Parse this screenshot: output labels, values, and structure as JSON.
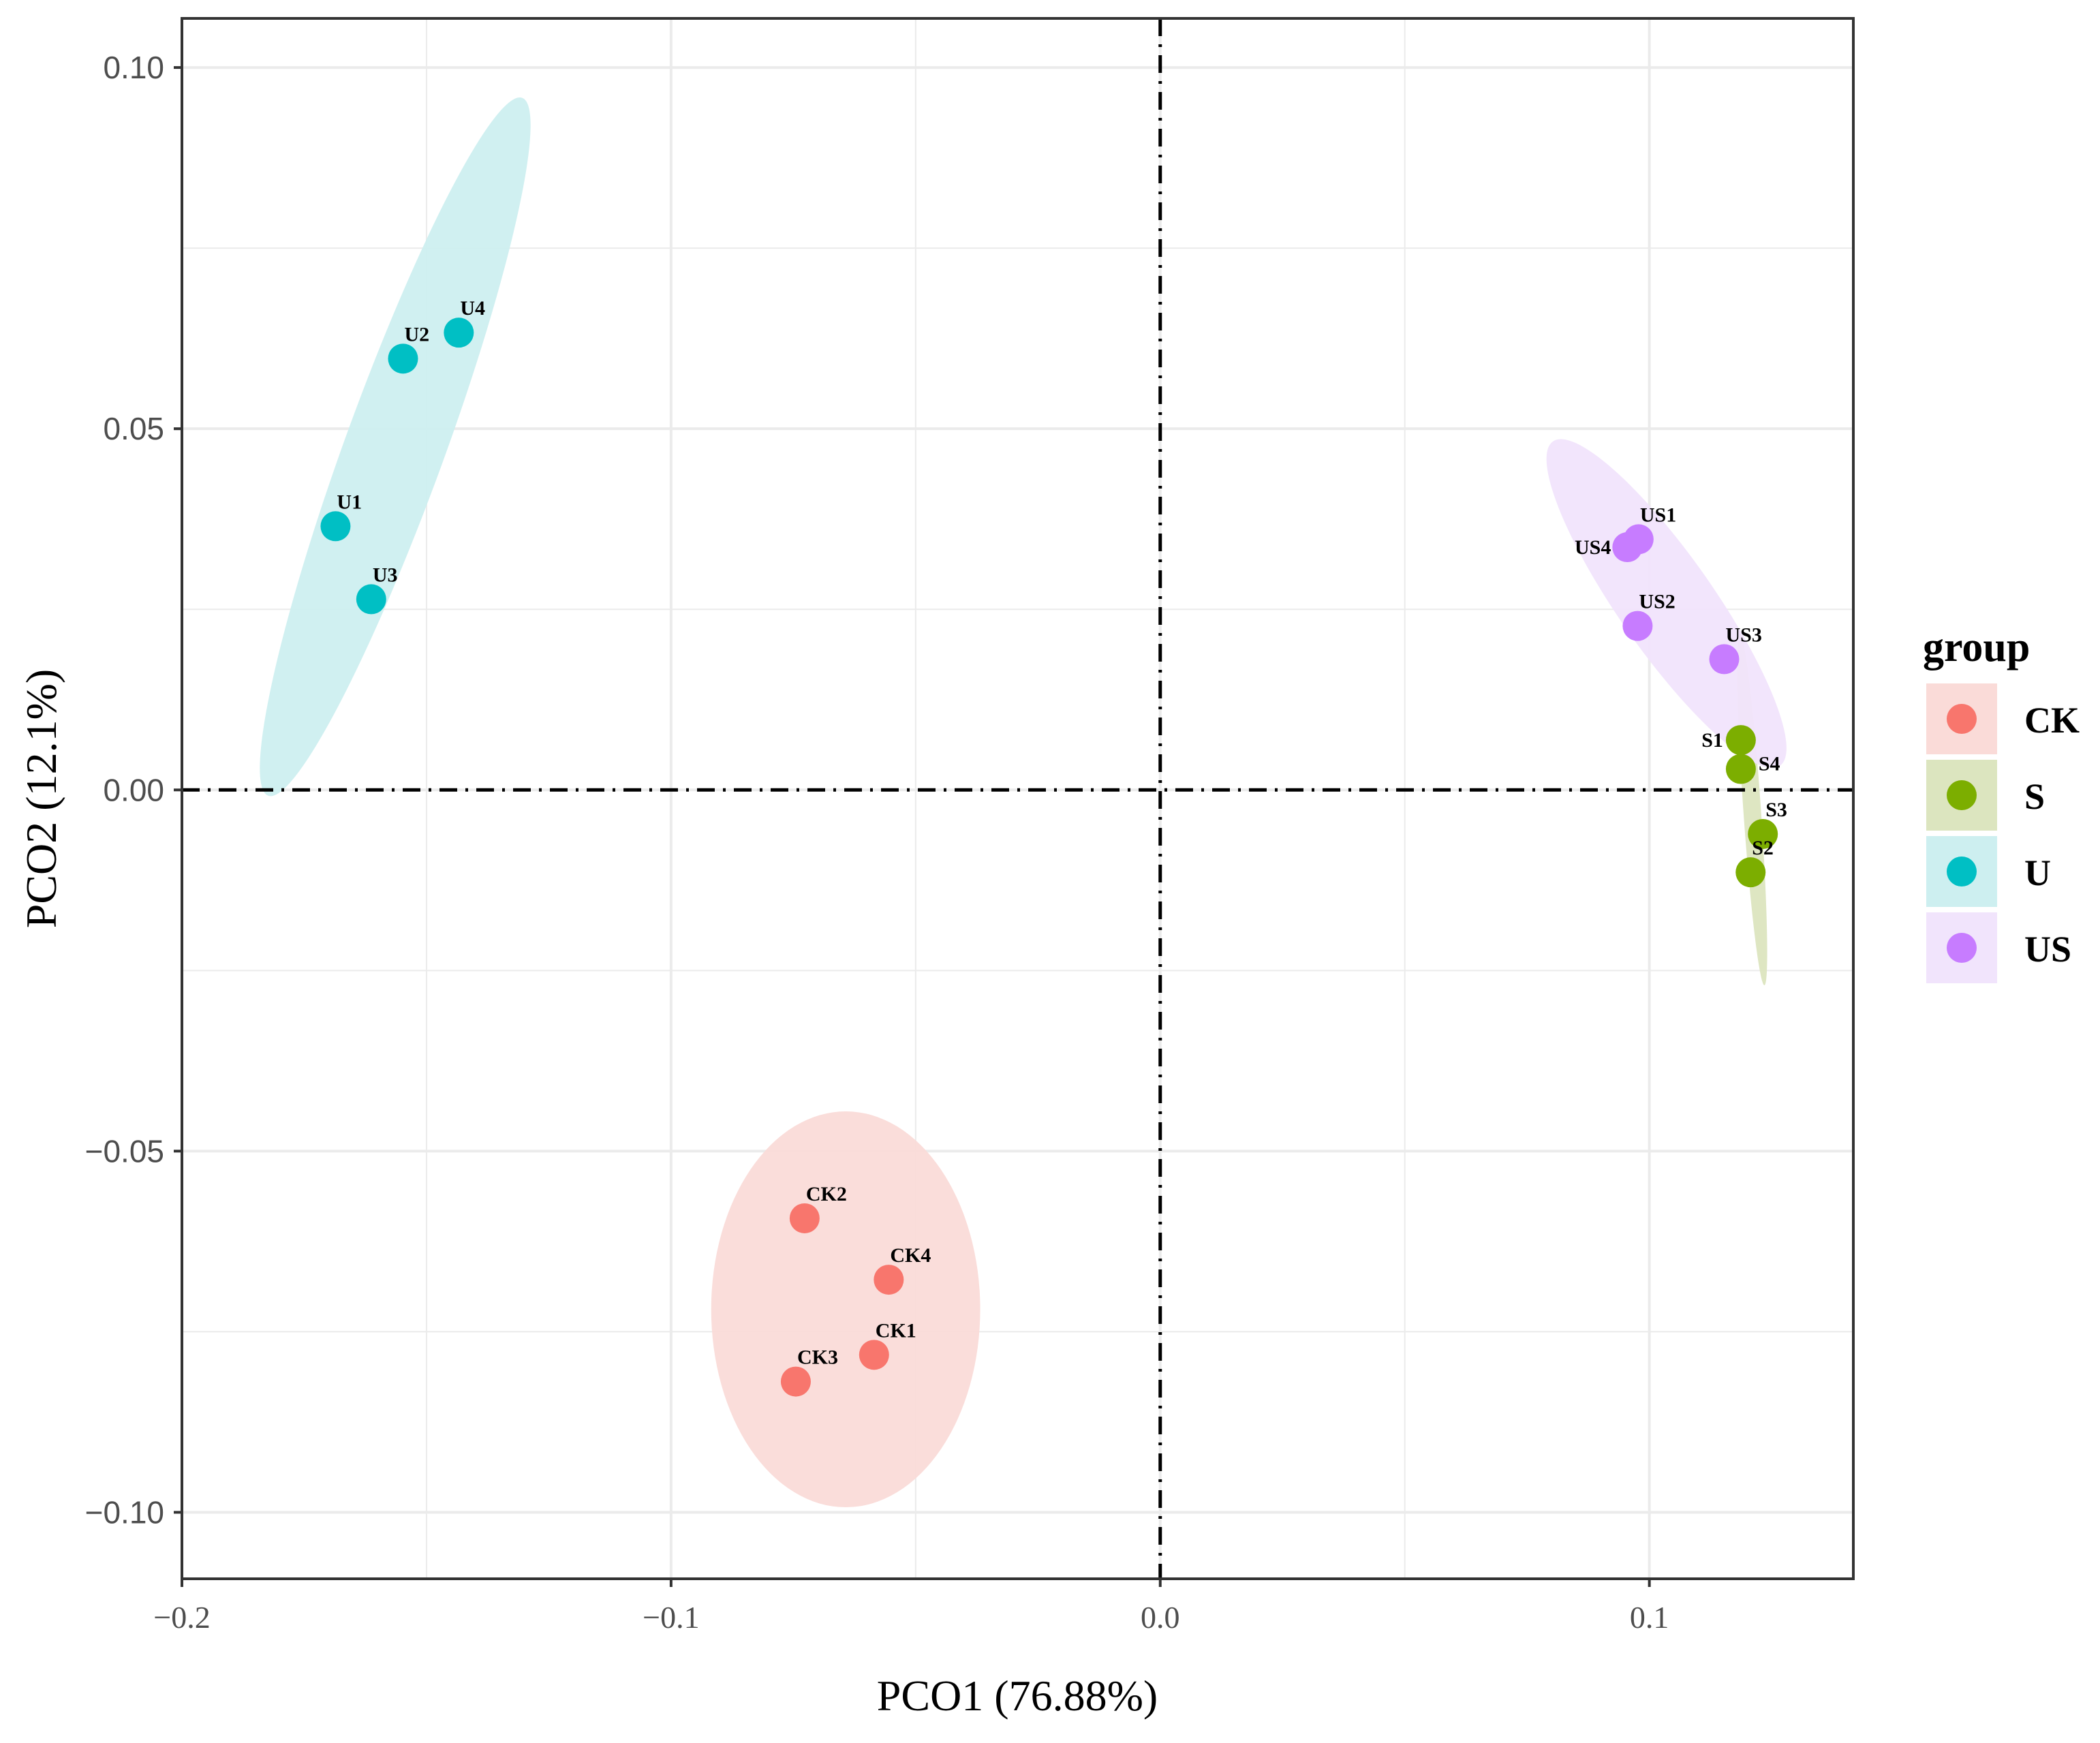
{
  "chart_data": {
    "type": "scatter",
    "title": "",
    "xlabel": "PCO1 (76.88%)",
    "ylabel": "PCO2 (12.1%)",
    "xlim": [
      -0.2,
      0.1417
    ],
    "ylim": [
      -0.1092,
      0.1068
    ],
    "xticks": [
      -0.2,
      -0.1,
      0.0,
      0.1
    ],
    "xtick_labels": [
      "−0.2",
      "−0.1",
      "0.0",
      "0.1"
    ],
    "yticks": [
      -0.1,
      -0.05,
      0.0,
      0.05,
      0.1
    ],
    "ytick_labels": [
      "−0.10",
      "−0.05",
      "0.00",
      "0.05",
      "0.10"
    ],
    "grid": true,
    "reference_lines": {
      "x": 0.0,
      "y": 0.0,
      "style": "dash-dot"
    },
    "legend": {
      "title": "group",
      "position": "right"
    },
    "series": [
      {
        "name": "CK",
        "color": "#F8766D",
        "fill": "#FADBD8",
        "ellipse": {
          "cx": -0.0643,
          "cy": -0.0719,
          "rx": 0.0275,
          "ry": 0.0274,
          "angle": 0
        },
        "points": [
          {
            "label": "CK1",
            "x": -0.0585,
            "y": -0.0782
          },
          {
            "label": "CK2",
            "x": -0.0727,
            "y": -0.0593
          },
          {
            "label": "CK3",
            "x": -0.0745,
            "y": -0.0819
          },
          {
            "label": "CK4",
            "x": -0.0555,
            "y": -0.0678
          }
        ]
      },
      {
        "name": "S",
        "color": "#7CAE00",
        "fill": "#DCE5BF",
        "ellipse": {
          "cx": 0.121,
          "cy": -0.0027,
          "rx": 0.0018,
          "ry": 0.0244,
          "angle": -4
        },
        "points": [
          {
            "label": "S1",
            "x": 0.1187,
            "y": 0.0069
          },
          {
            "label": "S2",
            "x": 0.1207,
            "y": -0.0114
          },
          {
            "label": "S3",
            "x": 0.1232,
            "y": -0.0061
          },
          {
            "label": "S4",
            "x": 0.1187,
            "y": 0.0029
          }
        ]
      },
      {
        "name": "U",
        "color": "#00BFC4",
        "fill": "#CDEFF0",
        "ellipse": {
          "cx": -0.1564,
          "cy": 0.0475,
          "rx": 0.0102,
          "ry": 0.0514,
          "angle": 20
        },
        "points": [
          {
            "label": "U1",
            "x": -0.1686,
            "y": 0.0365
          },
          {
            "label": "U2",
            "x": -0.1548,
            "y": 0.0597
          },
          {
            "label": "U3",
            "x": -0.1613,
            "y": 0.0264
          },
          {
            "label": "U4",
            "x": -0.1434,
            "y": 0.0633
          }
        ]
      },
      {
        "name": "US",
        "color": "#C77CFF",
        "fill": "#F1E4FC",
        "ellipse": {
          "cx": 0.1035,
          "cy": 0.0258,
          "rx": 0.0097,
          "ry": 0.0274,
          "angle": -35
        },
        "points": [
          {
            "label": "US1",
            "x": 0.0978,
            "y": 0.0347
          },
          {
            "label": "US2",
            "x": 0.0976,
            "y": 0.0227
          },
          {
            "label": "US3",
            "x": 0.1153,
            "y": 0.0181
          },
          {
            "label": "US4",
            "x": 0.0955,
            "y": 0.0336
          }
        ]
      }
    ]
  }
}
